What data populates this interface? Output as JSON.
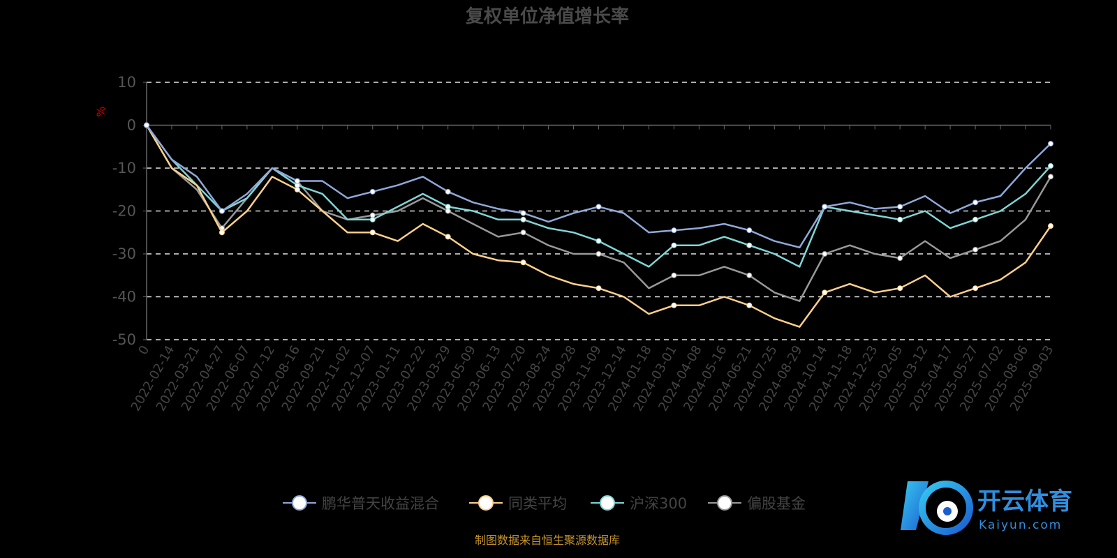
{
  "chart_data": {
    "type": "line",
    "title": "复权单位净值增长率",
    "ylabel": "%",
    "xlabel": "",
    "ylim": [
      -50,
      10
    ],
    "yticks": [
      10,
      0,
      -10,
      -20,
      -30,
      -40,
      -50
    ],
    "grid": true,
    "legend_position": "bottom",
    "x": [
      "0",
      "2022-02-14",
      "2022-03-21",
      "2022-04-27",
      "2022-06-07",
      "2022-07-12",
      "2022-08-16",
      "2022-09-21",
      "2022-11-02",
      "2022-12-07",
      "2023-01-11",
      "2023-02-22",
      "2023-03-29",
      "2023-05-09",
      "2023-06-13",
      "2023-07-20",
      "2023-08-24",
      "2023-09-28",
      "2023-11-09",
      "2023-12-14",
      "2024-01-18",
      "2024-03-01",
      "2024-04-08",
      "2024-05-16",
      "2024-06-21",
      "2024-07-25",
      "2024-08-29",
      "2024-10-14",
      "2024-11-18",
      "2024-12-23",
      "2025-02-05",
      "2025-03-12",
      "2025-04-17",
      "2025-05-27",
      "2025-07-02",
      "2025-08-06",
      "2025-09-03"
    ],
    "series": [
      {
        "name": "鹏华普天收益混合",
        "color": "#8fa9d8",
        "values": [
          0,
          -8,
          -12,
          -20,
          -16,
          -10,
          -13,
          -13,
          -17,
          -15.5,
          -14,
          -12,
          -15.5,
          -18,
          -19.5,
          -20.5,
          -22.5,
          -20.5,
          -19,
          -20.5,
          -25,
          -24.5,
          -24,
          -23,
          -24.5,
          -27,
          -28.5,
          -19,
          -18,
          -19.5,
          -19,
          -16.5,
          -20.5,
          -18,
          -16.5,
          -10,
          -4.3
        ]
      },
      {
        "name": "同类平均",
        "color": "#ffd08a",
        "values": [
          0,
          -10,
          -14,
          -25,
          -20,
          -12,
          -15,
          -20,
          -25,
          -25,
          -27,
          -23,
          -26,
          -30,
          -31.5,
          -32,
          -35,
          -37,
          -38,
          -40,
          -44,
          -42,
          -42,
          -40,
          -42,
          -45,
          -47,
          -39,
          -37,
          -39,
          -38,
          -35,
          -40,
          -38,
          -36,
          -32,
          -23.5
        ]
      },
      {
        "name": "沪深300",
        "color": "#7fd6d6",
        "values": [
          0,
          -8,
          -14,
          -20,
          -17,
          -10,
          -14,
          -16,
          -22,
          -22,
          -19,
          -16,
          -19,
          -20,
          -22,
          -22,
          -24,
          -25,
          -27,
          -30,
          -33,
          -28,
          -28,
          -26,
          -28,
          -30,
          -33,
          -19,
          -20,
          -21,
          -22,
          -20,
          -24,
          -22,
          -20,
          -16,
          -9.5
        ]
      },
      {
        "name": "偏股基金",
        "color": "#999999",
        "values": [
          0,
          -10,
          -15,
          -24,
          -17,
          -10,
          -13,
          -20,
          -22,
          -21,
          -20,
          -17,
          -20,
          -23,
          -26,
          -25,
          -28,
          -30,
          -30,
          -32,
          -38,
          -35,
          -35,
          -33,
          -35,
          -39,
          -41,
          -30,
          -28,
          -30,
          -31,
          -27,
          -31,
          -29,
          -27,
          -22,
          -12
        ]
      }
    ]
  },
  "footer": "制图数据来自恒生聚源数据库",
  "watermark": {
    "brand": "开云体育",
    "site": "Kaiyun.com"
  },
  "colors": {
    "grid": "#e6e6e6",
    "axis": "#666666",
    "ylabel": "#cc0000"
  }
}
